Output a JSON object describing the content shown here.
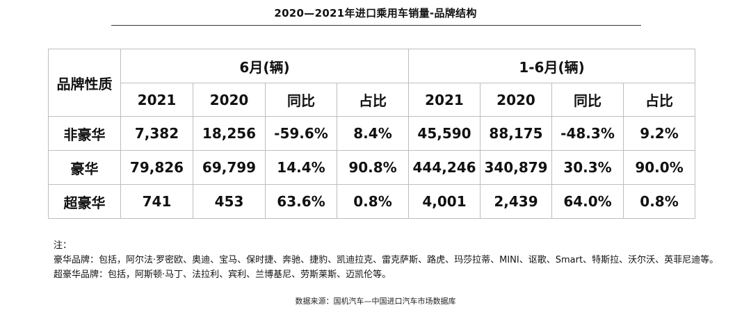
{
  "title": "2020—2021年进口乘用车销量-品牌结构",
  "table": {
    "row_header": "品牌性质",
    "groups": [
      "6月(辆)",
      "1-6月(辆)"
    ],
    "columns": [
      "2021",
      "2020",
      "同比",
      "占比"
    ],
    "rows": [
      {
        "label": "非豪华",
        "cells": [
          "7,382",
          "18,256",
          "-59.6%",
          "8.4%",
          "45,590",
          "88,175",
          "-48.3%",
          "9.2%"
        ]
      },
      {
        "label": "豪华",
        "cells": [
          "79,826",
          "69,799",
          "14.4%",
          "90.8%",
          "444,246",
          "340,879",
          "30.3%",
          "90.0%"
        ]
      },
      {
        "label": "超豪华",
        "cells": [
          "741",
          "453",
          "63.6%",
          "0.8%",
          "4,001",
          "2,439",
          "64.0%",
          "0.8%"
        ]
      }
    ]
  },
  "notes": {
    "heading": "注：",
    "luxury": "豪华品牌：包括，阿尔法·罗密欧、奥迪、宝马、保时捷、奔驰、捷豹、凯迪拉克、雷克萨斯、路虎、玛莎拉蒂、MINI、讴歌、Smart、特斯拉、沃尔沃、英菲尼迪等。",
    "super_luxury": "超豪华品牌：包括，阿斯顿·马丁、法拉利、宾利、兰博基尼、劳斯莱斯、迈凯伦等。"
  },
  "source": "数据来源：国机汽车—中国进口汽车市场数据库"
}
